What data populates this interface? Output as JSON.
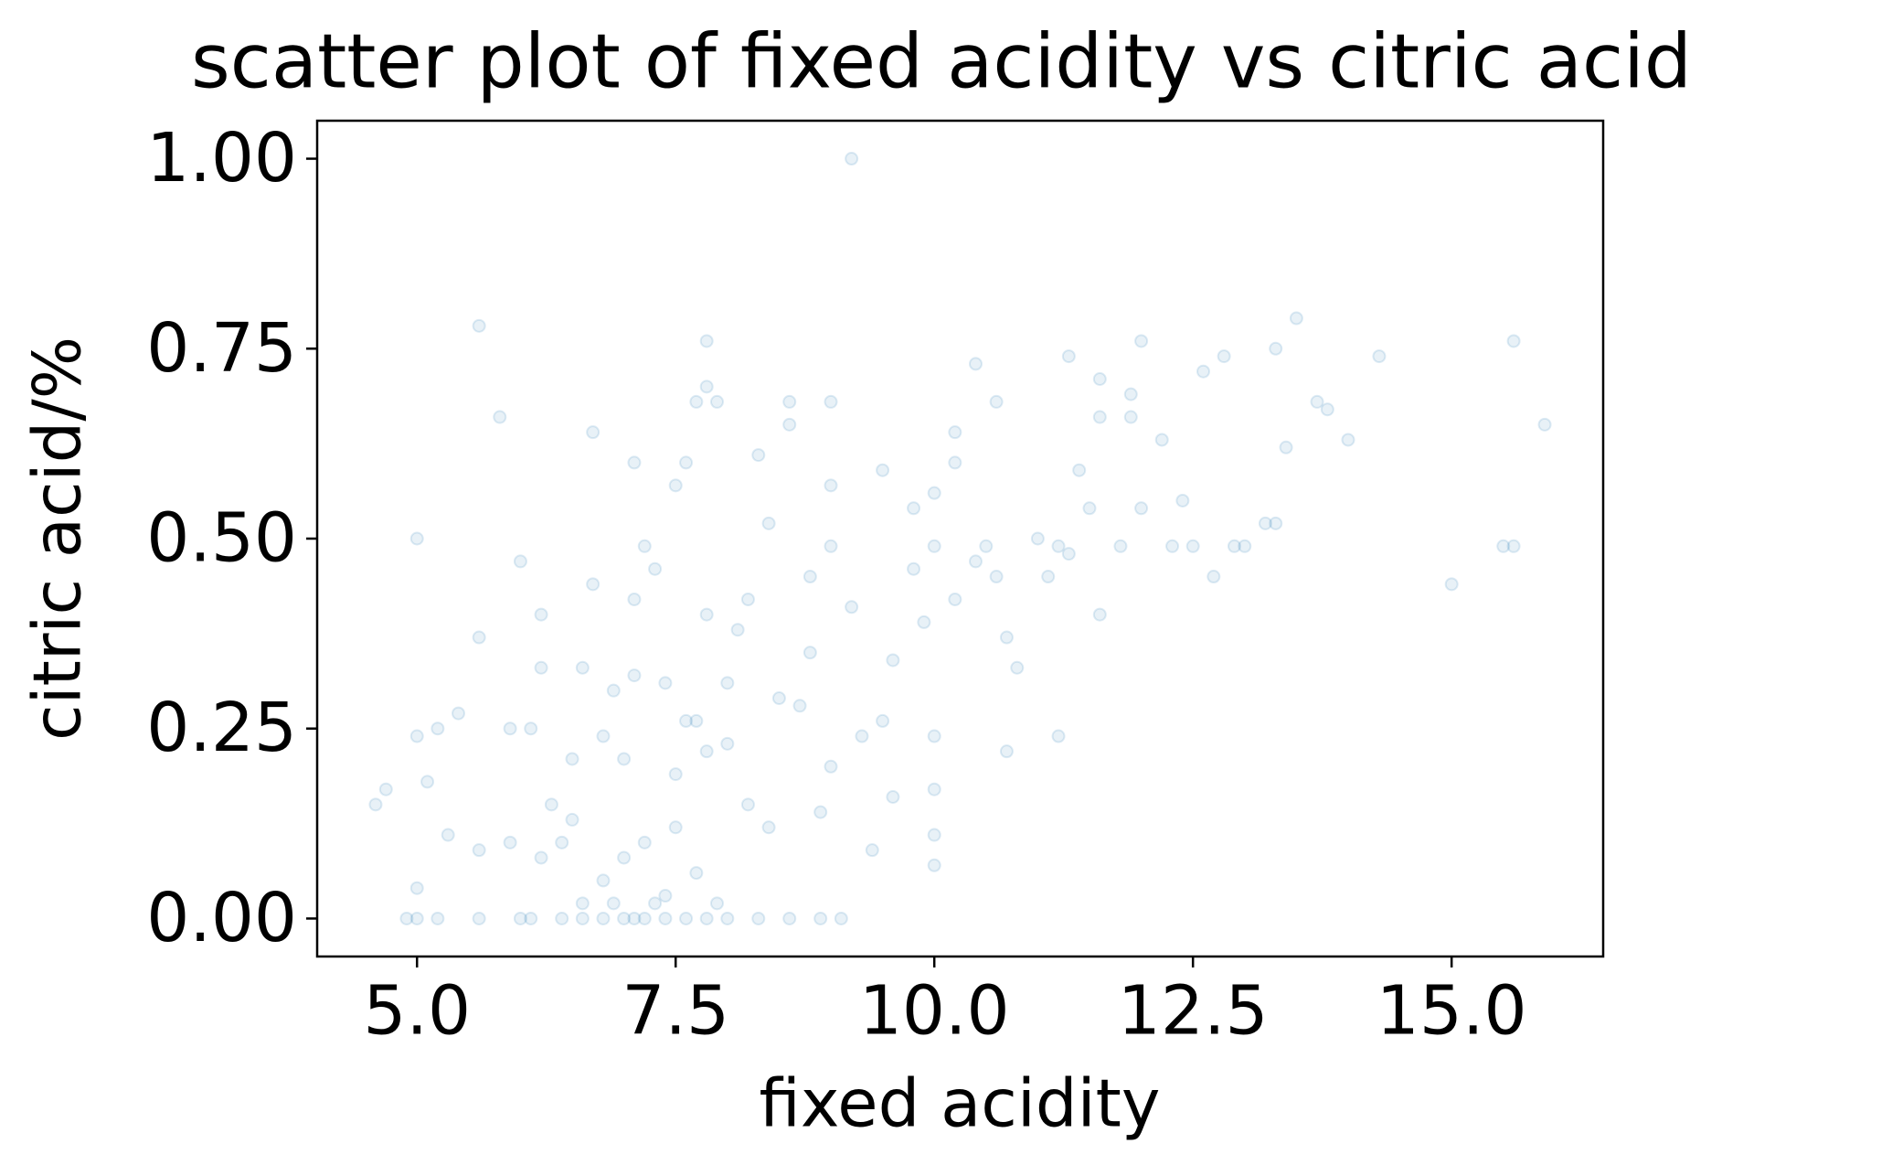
{
  "chart_data": {
    "type": "scatter",
    "title": "scatter plot of fixed acidity vs citric acid",
    "x_label": "fixed acidity",
    "y_label": "citric acid/%",
    "color": "#1f77b4",
    "alpha": 0.1,
    "xlim": [
      4.035,
      16.465
    ],
    "ylim": [
      -0.05,
      1.05
    ],
    "xticks": [
      {
        "value": 5,
        "label": "5.0"
      },
      7.5,
      {
        "value": 10,
        "label": "10.0"
      },
      12.5,
      {
        "value": 15,
        "label": "15.0"
      }
    ],
    "yticks": [
      {
        "value": 0,
        "label": "0.00"
      },
      {
        "value": 0.25,
        "label": "0.25"
      },
      {
        "value": 0.5,
        "label": "0.50"
      },
      {
        "value": 0.75,
        "label": "0.75"
      },
      {
        "value": 1,
        "label": "1.00"
      }
    ],
    "x": [
      9.2,
      5.6,
      7.8,
      5.8,
      4.6,
      4.7,
      5.0,
      5.0,
      15.6,
      15.9,
      15.5,
      15.6,
      15.0,
      13.5,
      14.3,
      13.3,
      14.0,
      13.7,
      13.8,
      12.8,
      12.0,
      11.3,
      11.6,
      10.4,
      11.2,
      10.7,
      12.7,
      13.0,
      12.3,
      12.5,
      12.9,
      13.2,
      13.3,
      13.4,
      12.6,
      11.9,
      11.9,
      12.2,
      11.4,
      11.6,
      11.1,
      10.0,
      10.0,
      9.9,
      10.2,
      10.6,
      9.5,
      9.0,
      8.6,
      8.6,
      8.3,
      7.9,
      7.7,
      7.8,
      7.6,
      7.5,
      6.7,
      7.1,
      6.7,
      5.9,
      5.3,
      5.6,
      5.4,
      5.2,
      5.6,
      6.0,
      6.2,
      5.1,
      5.0,
      4.9,
      5.0,
      5.2,
      5.6,
      6.0,
      6.1,
      6.4,
      6.6,
      6.8,
      7.0,
      7.1,
      7.2,
      7.4,
      7.6,
      7.8,
      8.0,
      8.3,
      8.6,
      8.9,
      9.1,
      6.2,
      6.4,
      6.6,
      6.8,
      7.0,
      7.2,
      7.4,
      7.5,
      6.8,
      6.9,
      7.1,
      7.0,
      7.3,
      7.1,
      7.2,
      7.4,
      7.6,
      7.7,
      7.8,
      8.0,
      8.2,
      8.2,
      8.4,
      8.1,
      8.5,
      8.8,
      8.8,
      9.0,
      9.2,
      9.3,
      9.5,
      9.6,
      9.8,
      10.0,
      10.0,
      10.2,
      10.4,
      10.5,
      10.7,
      10.8,
      11.0,
      11.2,
      11.5,
      11.8,
      12.0,
      12.4,
      9.8,
      10.0,
      9.0,
      8.4,
      8.7,
      8.0,
      7.5,
      6.5,
      6.1,
      6.3,
      6.5,
      5.9,
      6.2,
      6.6,
      7.8,
      8.9,
      9.4,
      9.0,
      10.0,
      9.6,
      11.6,
      10.2,
      10.6,
      11.3,
      6.9,
      7.3,
      7.7,
      7.9
    ],
    "values": [
      1.0,
      0.78,
      0.76,
      0.66,
      0.15,
      0.17,
      0.5,
      0.24,
      0.76,
      0.65,
      0.49,
      0.49,
      0.44,
      0.79,
      0.74,
      0.75,
      0.63,
      0.68,
      0.67,
      0.74,
      0.76,
      0.74,
      0.71,
      0.73,
      0.24,
      0.22,
      0.45,
      0.49,
      0.49,
      0.49,
      0.49,
      0.52,
      0.52,
      0.62,
      0.72,
      0.69,
      0.66,
      0.63,
      0.59,
      0.4,
      0.45,
      0.07,
      0.11,
      0.39,
      0.64,
      0.68,
      0.59,
      0.68,
      0.68,
      0.65,
      0.61,
      0.68,
      0.68,
      0.7,
      0.6,
      0.57,
      0.64,
      0.6,
      0.44,
      0.25,
      0.11,
      0.09,
      0.27,
      0.25,
      0.37,
      0.47,
      0.4,
      0.18,
      0.04,
      0.0,
      0.0,
      0.0,
      0.0,
      0.0,
      0.0,
      0.0,
      0.0,
      0.0,
      0.0,
      0.0,
      0.0,
      0.0,
      0.0,
      0.0,
      0.0,
      0.0,
      0.0,
      0.0,
      0.0,
      0.08,
      0.1,
      0.02,
      0.05,
      0.08,
      0.1,
      0.03,
      0.12,
      0.24,
      0.3,
      0.32,
      0.21,
      0.46,
      0.42,
      0.49,
      0.31,
      0.26,
      0.26,
      0.22,
      0.23,
      0.42,
      0.15,
      0.12,
      0.38,
      0.29,
      0.45,
      0.35,
      0.49,
      0.41,
      0.24,
      0.26,
      0.34,
      0.46,
      0.49,
      0.24,
      0.42,
      0.47,
      0.49,
      0.37,
      0.33,
      0.5,
      0.49,
      0.54,
      0.49,
      0.54,
      0.55,
      0.54,
      0.56,
      0.57,
      0.52,
      0.28,
      0.31,
      0.19,
      0.21,
      0.25,
      0.15,
      0.13,
      0.1,
      0.33,
      0.33,
      0.4,
      0.14,
      0.09,
      0.2,
      0.17,
      0.16,
      0.66,
      0.6,
      0.45,
      0.48,
      0.02,
      0.02,
      0.06,
      0.02
    ]
  }
}
